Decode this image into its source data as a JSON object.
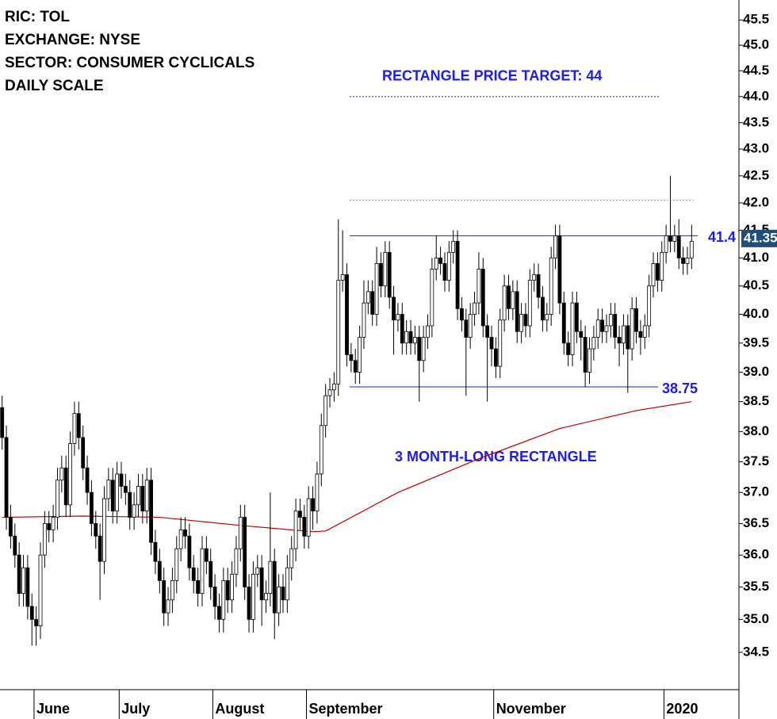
{
  "chart_data": {
    "type": "candlestick",
    "header": [
      "RIC: TOL",
      "EXCHANGE: NYSE",
      "SECTOR: CONSUMER CYCLICALS",
      "DAILY SCALE"
    ],
    "log": true,
    "up_color": "#ffffff",
    "down_color": "#000000",
    "xlim": [
      -0.5,
      162.5
    ],
    "xticks": [
      {
        "value": 7.5,
        "label": "June"
      },
      {
        "value": 27.5,
        "label": "July"
      },
      {
        "value": 49.5,
        "label": "August"
      },
      {
        "value": 71.5,
        "label": "September"
      },
      {
        "value": 115.5,
        "label": "November"
      },
      {
        "value": 155.5,
        "label": "2020"
      }
    ],
    "ylim": [
      33.94,
      45.9
    ],
    "yticks": [
      34.5,
      {
        "value": 35,
        "label": "35.0"
      },
      35.5,
      {
        "value": 36,
        "label": "36.0"
      },
      36.5,
      {
        "value": 37,
        "label": "37.0"
      },
      37.5,
      {
        "value": 38,
        "label": "38.0"
      },
      38.5,
      {
        "value": 39,
        "label": "39.0"
      },
      39.5,
      {
        "value": 40,
        "label": "40.0"
      },
      40.5,
      {
        "value": 41,
        "label": "41.0"
      },
      41.5,
      {
        "value": 42,
        "label": "42.0"
      },
      42.5,
      {
        "value": 43,
        "label": "43.0"
      },
      43.5,
      {
        "value": 44,
        "label": "44.0"
      },
      44.5,
      {
        "value": 45,
        "label": "45.0"
      },
      45.5
    ],
    "open": [
      38.4,
      37.9,
      36.6,
      36.3,
      36.0,
      35.4,
      35.8,
      35.2,
      35.0,
      34.9,
      36.0,
      36.5,
      36.4,
      36.6,
      37.2,
      37.4,
      36.8,
      37.8,
      38.3,
      37.9,
      37.4,
      37.0,
      36.5,
      36.3,
      35.9,
      36.9,
      37.2,
      36.7,
      37.3,
      37.1,
      37.0,
      36.6,
      36.8,
      37.1,
      36.7,
      37.2,
      36.2,
      35.9,
      35.6,
      35.1,
      35.3,
      35.6,
      36.1,
      36.4,
      36.3,
      35.8,
      35.6,
      35.4,
      36.1,
      35.9,
      35.5,
      35.2,
      35.0,
      35.6,
      35.3,
      35.7,
      36.1,
      36.6,
      35.5,
      35.0,
      35.7,
      35.8,
      35.3,
      35.4,
      35.9,
      35.1,
      35.5,
      35.3,
      35.8,
      36.1,
      36.7,
      36.6,
      36.3,
      36.9,
      36.7,
      37.3,
      38.1,
      38.6,
      38.7,
      38.8,
      40.6,
      40.7,
      39.3,
      39.2,
      39.0,
      39.6,
      40.2,
      40.4,
      40.0,
      40.9,
      40.5,
      41.1,
      40.3,
      39.9,
      40.0,
      39.5,
      39.7,
      39.5,
      39.6,
      39.2,
      39.6,
      39.8,
      40.8,
      41.0,
      40.9,
      40.6,
      41.1,
      41.3,
      40.1,
      39.9,
      39.6,
      40.0,
      40.2,
      40.8,
      39.8,
      39.6,
      39.4,
      39.1,
      39.9,
      40.5,
      40.1,
      40.4,
      39.7,
      40.0,
      39.8,
      40.6,
      40.7,
      40.3,
      39.9,
      40.0,
      41.0,
      41.4,
      40.2,
      39.5,
      39.3,
      40.2,
      39.7,
      39.6,
      39.0,
      39.4,
      39.6,
      39.9,
      39.7,
      39.8,
      40.0,
      39.6,
      39.5,
      39.8,
      39.4,
      40.1,
      39.7,
      39.6,
      39.8,
      40.5,
      40.9,
      40.6,
      41.1,
      41.4,
      41.3,
      41.4,
      41.0,
      40.9,
      41.0
    ],
    "high": [
      38.6,
      38.1,
      36.8,
      36.5,
      36.2,
      36.0,
      36.0,
      35.4,
      35.2,
      36.2,
      36.7,
      36.7,
      36.8,
      37.4,
      37.6,
      37.6,
      38.0,
      38.5,
      38.5,
      38.1,
      37.6,
      37.2,
      36.7,
      36.5,
      37.1,
      37.4,
      37.4,
      37.5,
      37.5,
      37.3,
      37.2,
      37.0,
      37.3,
      37.3,
      37.4,
      37.4,
      36.4,
      36.1,
      35.8,
      35.5,
      35.8,
      36.3,
      36.6,
      36.6,
      36.5,
      36.0,
      35.8,
      36.3,
      36.3,
      36.1,
      35.7,
      35.4,
      35.8,
      35.8,
      35.9,
      36.3,
      36.8,
      36.8,
      35.7,
      35.9,
      36.0,
      36.0,
      35.6,
      37.0,
      36.1,
      35.7,
      35.7,
      36.0,
      36.3,
      36.9,
      36.9,
      36.8,
      37.1,
      37.1,
      37.5,
      38.3,
      38.8,
      38.9,
      39.0,
      41.7,
      41.5,
      40.9,
      39.5,
      39.4,
      39.8,
      40.6,
      40.6,
      40.6,
      41.2,
      41.1,
      41.3,
      41.3,
      40.5,
      40.2,
      40.2,
      39.9,
      39.9,
      39.8,
      39.8,
      39.8,
      40.0,
      41.0,
      41.4,
      41.2,
      41.1,
      41.3,
      41.5,
      41.5,
      40.3,
      40.1,
      40.2,
      40.4,
      41.1,
      41.0,
      40.0,
      39.8,
      39.6,
      40.1,
      40.7,
      40.7,
      40.6,
      40.6,
      40.2,
      40.2,
      40.8,
      40.9,
      40.9,
      40.5,
      40.2,
      41.2,
      41.6,
      41.6,
      40.4,
      39.7,
      40.4,
      40.4,
      39.9,
      39.8,
      39.6,
      39.8,
      40.1,
      40.1,
      40.0,
      40.2,
      40.2,
      39.8,
      40.0,
      40.0,
      40.3,
      40.3,
      39.9,
      40.0,
      40.7,
      41.1,
      41.1,
      41.3,
      41.6,
      42.5,
      41.6,
      41.7,
      41.2,
      41.2,
      41.6
    ],
    "low": [
      37.7,
      36.4,
      36.1,
      35.8,
      35.2,
      35.2,
      35.0,
      34.6,
      34.6,
      34.7,
      35.8,
      36.2,
      36.2,
      36.4,
      37.0,
      36.6,
      36.6,
      37.6,
      37.7,
      37.2,
      36.8,
      36.3,
      36.1,
      35.3,
      35.7,
      36.7,
      36.5,
      36.5,
      36.9,
      36.8,
      36.4,
      36.4,
      36.6,
      36.5,
      36.5,
      36.0,
      35.7,
      35.4,
      34.9,
      34.9,
      35.1,
      35.4,
      35.9,
      36.1,
      35.6,
      35.4,
      35.2,
      35.2,
      35.7,
      35.3,
      35.0,
      34.8,
      34.8,
      35.1,
      35.1,
      35.5,
      35.9,
      35.3,
      34.8,
      34.8,
      35.5,
      34.9,
      35.1,
      35.2,
      34.7,
      34.9,
      35.1,
      35.1,
      35.6,
      35.9,
      36.4,
      36.1,
      36.1,
      36.4,
      36.5,
      37.1,
      37.9,
      38.4,
      38.5,
      38.6,
      40.4,
      39.1,
      39.0,
      38.8,
      38.8,
      39.4,
      40.0,
      39.8,
      39.8,
      40.3,
      40.3,
      40.1,
      39.3,
      39.7,
      39.3,
      39.3,
      39.3,
      39.3,
      38.5,
      39.0,
      39.4,
      39.6,
      40.6,
      40.7,
      40.4,
      40.4,
      40.9,
      39.9,
      39.7,
      38.6,
      39.4,
      39.8,
      40.0,
      39.6,
      38.5,
      39.1,
      38.9,
      38.9,
      39.7,
      39.9,
      39.9,
      39.5,
      39.5,
      39.6,
      39.6,
      40.4,
      40.1,
      39.7,
      39.7,
      39.8,
      40.8,
      40.0,
      39.3,
      39.1,
      39.1,
      39.5,
      39.2,
      38.75,
      38.8,
      39.2,
      39.4,
      39.5,
      39.5,
      39.6,
      39.4,
      39.1,
      39.3,
      38.65,
      39.2,
      39.5,
      39.3,
      39.4,
      39.6,
      40.3,
      40.4,
      40.4,
      40.9,
      41.1,
      41.1,
      40.8,
      40.7,
      40.7,
      40.8
    ],
    "close": [
      37.9,
      36.6,
      36.3,
      36.0,
      35.4,
      35.8,
      35.2,
      35.0,
      34.9,
      36.0,
      36.5,
      36.4,
      36.6,
      37.2,
      37.4,
      36.8,
      37.8,
      38.3,
      37.9,
      37.4,
      37.0,
      36.5,
      36.3,
      35.9,
      36.9,
      37.2,
      36.7,
      37.3,
      37.1,
      37.0,
      36.6,
      36.8,
      37.1,
      36.7,
      37.2,
      36.2,
      35.9,
      35.6,
      35.1,
      35.3,
      35.6,
      36.1,
      36.4,
      36.3,
      35.8,
      35.6,
      35.4,
      36.1,
      35.9,
      35.5,
      35.2,
      35.0,
      35.6,
      35.3,
      35.7,
      36.1,
      36.6,
      35.5,
      35.0,
      35.7,
      35.8,
      35.3,
      35.4,
      35.9,
      35.1,
      35.5,
      35.3,
      35.8,
      36.1,
      36.7,
      36.6,
      36.3,
      36.9,
      36.7,
      37.3,
      38.1,
      38.6,
      38.7,
      38.8,
      40.6,
      40.7,
      39.3,
      39.2,
      39.0,
      39.6,
      40.2,
      40.4,
      40.0,
      40.9,
      40.5,
      41.1,
      40.3,
      39.9,
      40.0,
      39.5,
      39.7,
      39.5,
      39.6,
      39.2,
      39.6,
      39.8,
      40.8,
      41.0,
      40.9,
      40.6,
      41.1,
      41.3,
      40.1,
      39.9,
      39.6,
      40.0,
      40.2,
      40.8,
      39.8,
      39.6,
      39.4,
      39.1,
      39.9,
      40.5,
      40.1,
      40.4,
      39.7,
      40.0,
      39.8,
      40.6,
      40.7,
      40.3,
      39.9,
      40.0,
      41.0,
      41.4,
      40.2,
      39.5,
      39.3,
      40.2,
      39.7,
      39.6,
      39.0,
      39.4,
      39.6,
      39.9,
      39.7,
      39.8,
      40.0,
      39.6,
      39.5,
      39.8,
      39.4,
      40.1,
      39.7,
      39.6,
      39.8,
      40.5,
      40.9,
      40.6,
      41.1,
      41.4,
      41.3,
      41.4,
      41.0,
      40.9,
      41.0,
      41.3
    ],
    "moving_average": {
      "color": "#c00000",
      "x": [
        0,
        19,
        37,
        56,
        73,
        76,
        93,
        112,
        131,
        149,
        162
      ],
      "values": [
        36.6,
        36.62,
        36.6,
        36.47,
        36.37,
        36.38,
        37.0,
        37.55,
        38.05,
        38.35,
        38.5
      ]
    },
    "target": {
      "value": 44,
      "text": "RECTANGLE PRICE TARGET: 44"
    },
    "prior_high": 42.05,
    "levels": [
      {
        "value": 41.4,
        "label": "41.4"
      },
      {
        "value": 38.75,
        "label": "38.75"
      }
    ],
    "pattern_label": "3 MONTH-LONG RECTANGLE",
    "last_price": {
      "value": 41.35,
      "label": "41.35"
    }
  }
}
